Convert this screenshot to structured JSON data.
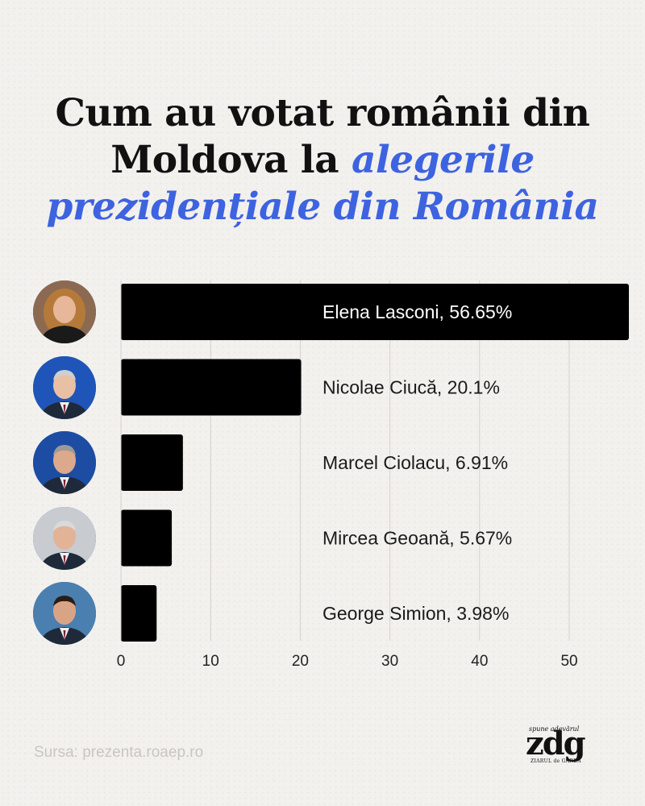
{
  "title": {
    "line1": "Cum au votat românii din",
    "line2_plain": "Moldova la ",
    "line2_highlight": "alegerile",
    "line3_highlight": "prezidențiale din România"
  },
  "colors": {
    "highlight": "#3d63e0",
    "bar": "#000000",
    "text": "#111111"
  },
  "source": "Sursa: prezenta.roaep.ro",
  "logo": {
    "tagline": "spune adevărul",
    "main": "zdg",
    "sub": "ZIARUL de GARDĂ"
  },
  "chart_data": {
    "type": "bar",
    "orientation": "horizontal",
    "categories": [
      "Elena Lasconi",
      "Nicolae Ciucă",
      "Marcel Ciolacu",
      "Mircea Geoană",
      "George Simion"
    ],
    "values": [
      56.65,
      20.1,
      6.91,
      5.67,
      3.98
    ],
    "data_labels": [
      "Elena Lasconi, 56.65%",
      "Nicolae Ciucă, 20.1%",
      "Marcel Ciolacu, 6.91%",
      "Mircea Geoană, 5.67%",
      "George Simion, 3.98%"
    ],
    "xticks": [
      0,
      10,
      20,
      30,
      40,
      50
    ],
    "xlim": [
      0,
      56.65
    ],
    "grid": true,
    "avatars": [
      "woman-portrait-icon",
      "man-portrait-icon",
      "man-portrait-icon",
      "man-portrait-icon",
      "man-portrait-icon"
    ]
  }
}
